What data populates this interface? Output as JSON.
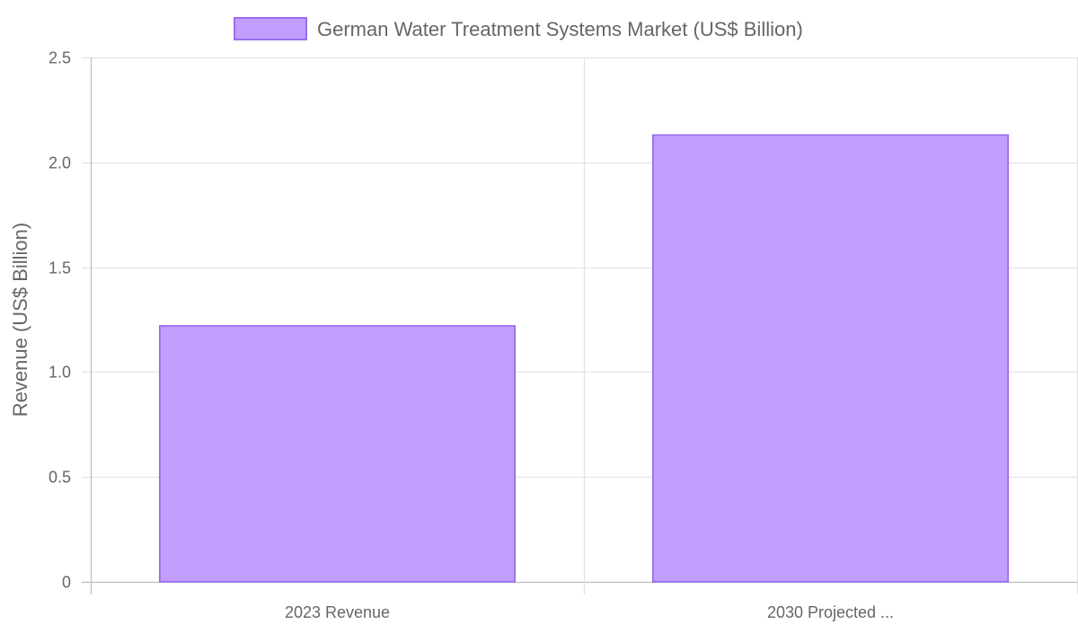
{
  "chart_data": {
    "type": "bar",
    "categories": [
      "2023 Revenue",
      "2030 Projected ..."
    ],
    "series": [
      {
        "name": "German Water Treatment Systems Market (US$ Billion)",
        "values": [
          1.22,
          2.13
        ],
        "color": "#9b6cf0",
        "fill": "#c09fff"
      }
    ],
    "title": "",
    "xlabel": "",
    "ylabel": "Revenue (US$ Billion)",
    "ylim": [
      0,
      2.5
    ],
    "yticks": [
      {
        "value": 0,
        "label": "0"
      },
      {
        "value": 0.5,
        "label": "0.5"
      },
      {
        "value": 1.0,
        "label": "1.0"
      },
      {
        "value": 1.5,
        "label": "1.5"
      },
      {
        "value": 2.0,
        "label": "2.0"
      },
      {
        "value": 2.5,
        "label": "2.5"
      }
    ],
    "grid": true,
    "legend_position": "top"
  }
}
